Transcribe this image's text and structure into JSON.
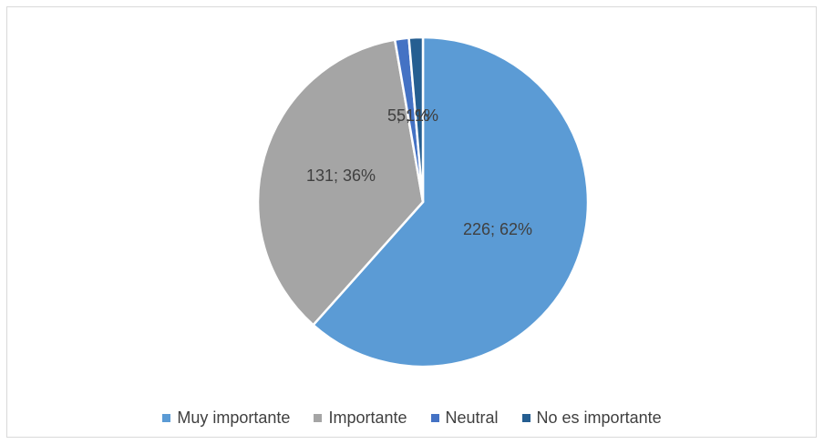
{
  "chart_data": {
    "type": "pie",
    "title": "",
    "categories": [
      "Muy importante",
      "Importante",
      "Neutral",
      "No es importante"
    ],
    "values": [
      226,
      131,
      5,
      5
    ],
    "percentages": [
      62,
      36,
      1,
      1
    ],
    "data_labels": [
      "226; 62%",
      "131; 36%",
      "5; 1%",
      "5; 1%"
    ],
    "colors": [
      "#5b9bd5",
      "#a5a5a5",
      "#4472c4",
      "#255e91"
    ],
    "legend_position": "bottom"
  },
  "legend": {
    "items": [
      {
        "label": "Muy importante",
        "color": "#5b9bd5"
      },
      {
        "label": "Importante",
        "color": "#a5a5a5"
      },
      {
        "label": "Neutral",
        "color": "#4472c4"
      },
      {
        "label": "No es importante",
        "color": "#255e91"
      }
    ]
  }
}
